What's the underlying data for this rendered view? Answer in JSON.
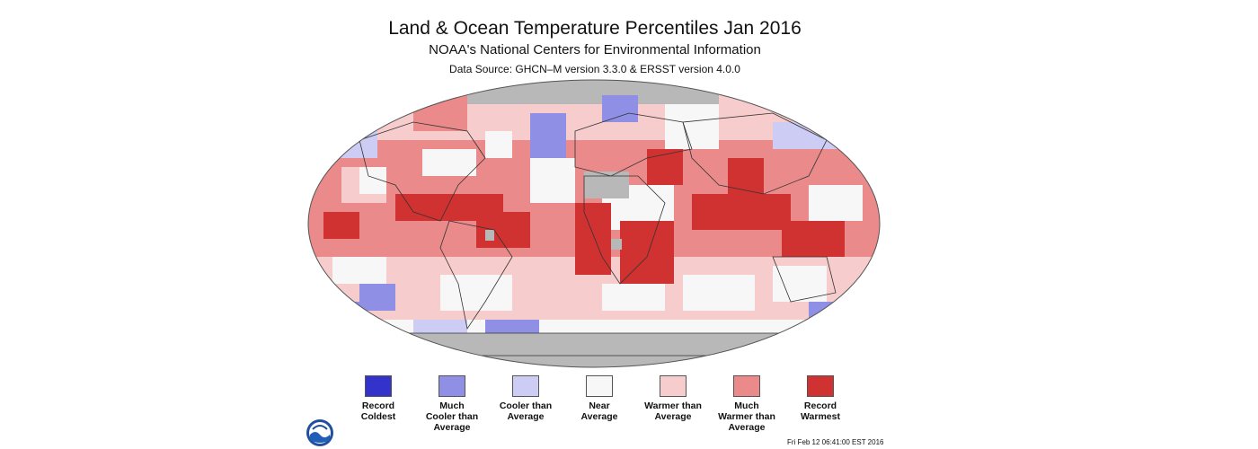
{
  "header": {
    "title": "Land & Ocean Temperature Percentiles Jan 2016",
    "subtitle": "NOAA's National Centers for Environmental Information",
    "source": "Data Source: GHCN–M version 3.3.0 & ERSST version 4.0.0"
  },
  "colors": {
    "record_coldest": "#3333cc",
    "much_cooler": "#8f8fe6",
    "cooler": "#ccccf5",
    "near": "#f7f7f7",
    "warmer": "#f7cccc",
    "much_warmer": "#ea8a8a",
    "record_warmest": "#d03232",
    "no_data": "#b8b8b8",
    "land_outline": "#333333"
  },
  "legend": [
    {
      "label": "Record\nColdest",
      "color": "#3333cc"
    },
    {
      "label": "Much\nCooler than\nAverage",
      "color": "#8f8fe6"
    },
    {
      "label": "Cooler than\nAverage",
      "color": "#ccccf5"
    },
    {
      "label": "Near\nAverage",
      "color": "#f7f7f7"
    },
    {
      "label": "Warmer than\nAverage",
      "color": "#f7cccc"
    },
    {
      "label": "Much\nWarmer than\nAverage",
      "color": "#ea8a8a"
    },
    {
      "label": "Record\nWarmest",
      "color": "#d03232"
    }
  ],
  "timestamp": "Fri Feb 12 06:41:00 EST 2016",
  "logo": {
    "icon": "noaa-logo-icon"
  }
}
